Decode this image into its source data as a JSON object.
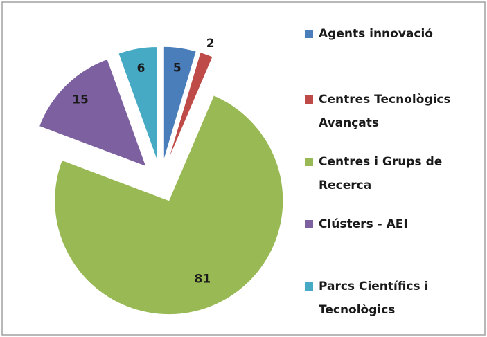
{
  "chart_data": {
    "type": "pie",
    "categories": [
      "Agents innovació",
      "Centres Tecnològics Avançats",
      "Centres i Grups de Recerca",
      "Clústers - AEI",
      "Parcs Científics i Tecnològics"
    ],
    "values": [
      5,
      2,
      81,
      15,
      6
    ],
    "colors": [
      "#4a7ebb",
      "#be4b48",
      "#98b954",
      "#7d60a0",
      "#46aac5"
    ],
    "legend": "right"
  }
}
